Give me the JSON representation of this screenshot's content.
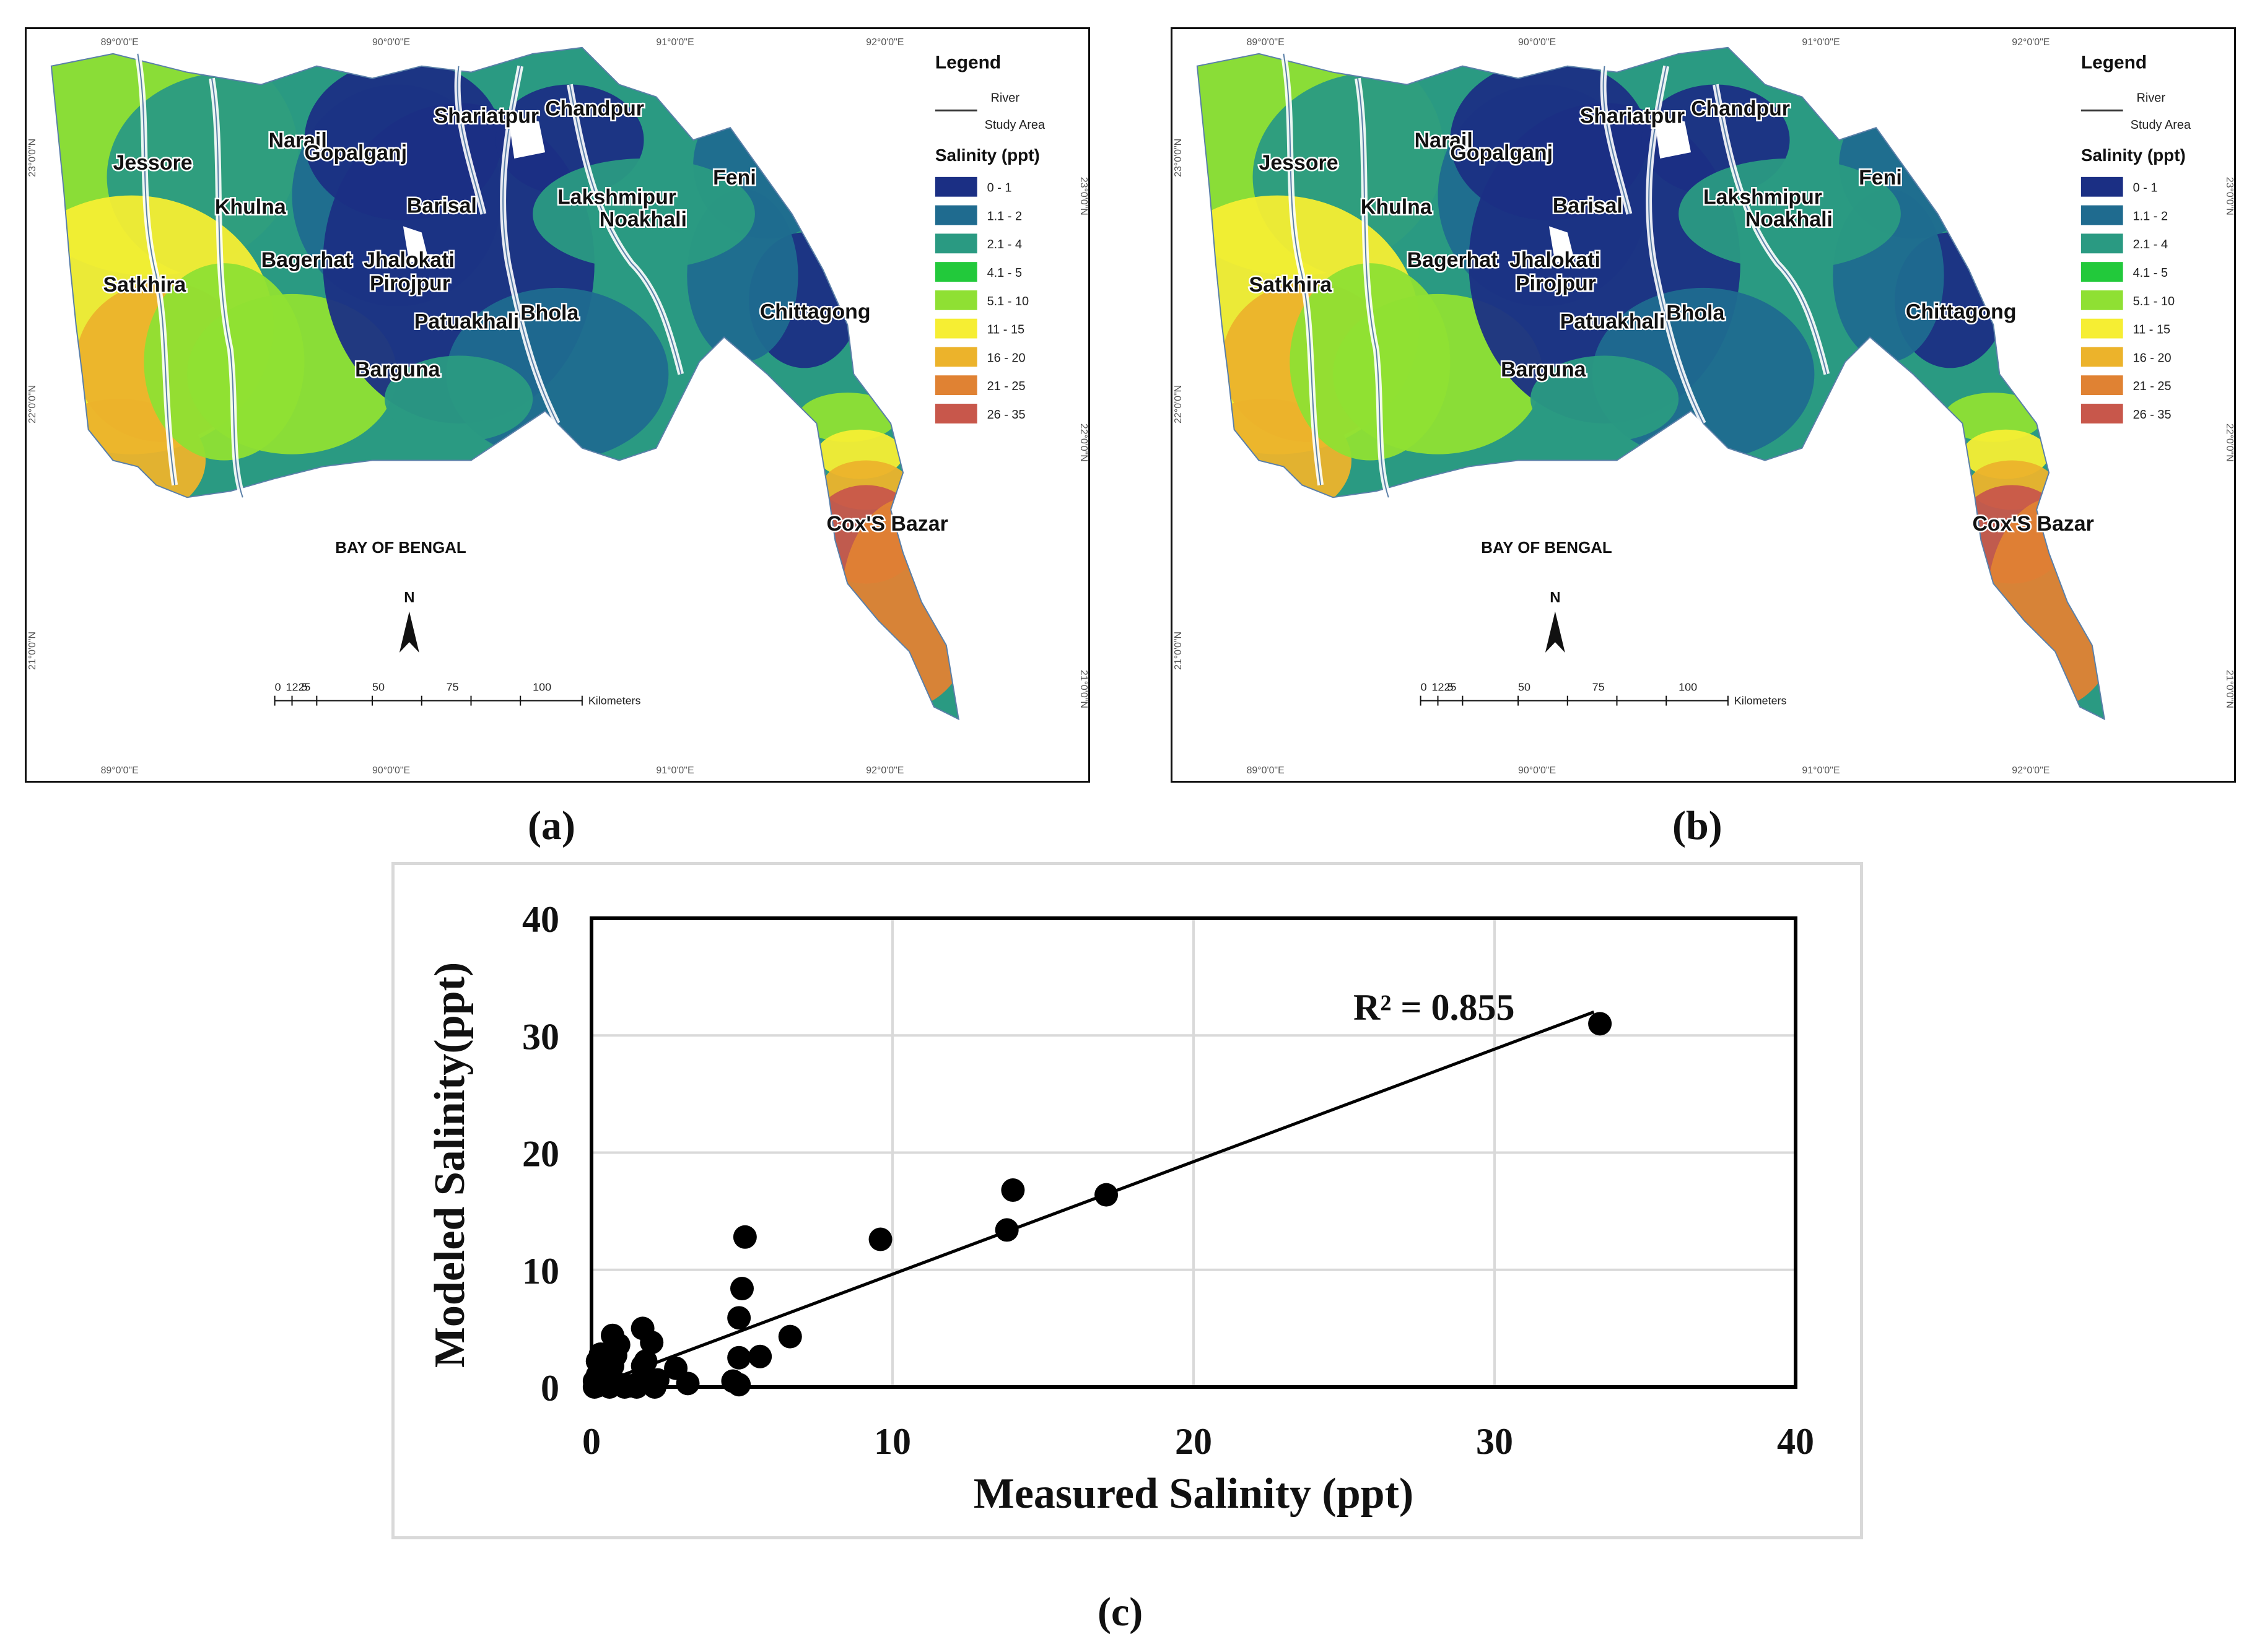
{
  "panels": [
    {
      "id": "a",
      "caption": "(a)",
      "legend": {
        "title": "Legend",
        "river_label": "River",
        "study_area_label": "Study Area",
        "salinity_title": "Salinity (ppt)",
        "classes": [
          {
            "label": "0 - 1",
            "color": "#1b2f84"
          },
          {
            "label": "1.1 - 2",
            "color": "#1f6b8f"
          },
          {
            "label": "2.1 - 4",
            "color": "#2a9a82"
          },
          {
            "label": "4.1 - 5",
            "color": "#22c93b"
          },
          {
            "label": "5.1 - 10",
            "color": "#8fe033"
          },
          {
            "label": "11 - 15",
            "color": "#f6ee33"
          },
          {
            "label": "16 - 20",
            "color": "#ecb32b"
          },
          {
            "label": "21 - 25",
            "color": "#e08233"
          },
          {
            "label": "26 - 35",
            "color": "#c8574b"
          }
        ]
      },
      "places": [
        "Shariatpur",
        "Chandpur",
        "Narail",
        "Gopalganj",
        "Jessore",
        "Khulna",
        "Barisal",
        "Lakshmipur",
        "Noakhali",
        "Feni",
        "Satkhira",
        "Bagerhat",
        "Jhalokati",
        "Pirojpur",
        "Patuakhali",
        "Bhola",
        "Chittagong",
        "Barguna",
        "Cox'S Bazar"
      ],
      "sea_label": "BAY OF BENGAL",
      "north": "N",
      "scale_numbers": [
        "0",
        "12.5",
        "25",
        "50",
        "75",
        "100"
      ],
      "scale_unit": "Kilometers",
      "coords_top": [
        "89°0'0\"E",
        "90°0'0\"E",
        "91°0'0\"E",
        "92°0'0\"E"
      ],
      "coords_side": [
        "23°0'0\"N",
        "22°0'0\"N",
        "21°0'0\"N"
      ]
    },
    {
      "id": "b",
      "caption": "(b)",
      "legend": {
        "title": "Legend",
        "river_label": "River",
        "study_area_label": "Study Area",
        "salinity_title": "Salinity (ppt)",
        "classes": [
          {
            "label": "0 - 1",
            "color": "#1b2f84"
          },
          {
            "label": "1.1 - 2",
            "color": "#1f6b8f"
          },
          {
            "label": "2.1 - 4",
            "color": "#2a9a82"
          },
          {
            "label": "4.1 - 5",
            "color": "#22c93b"
          },
          {
            "label": "5.1 - 10",
            "color": "#8fe033"
          },
          {
            "label": "11 - 15",
            "color": "#f6ee33"
          },
          {
            "label": "16 - 20",
            "color": "#ecb32b"
          },
          {
            "label": "21 - 25",
            "color": "#e08233"
          },
          {
            "label": "26 - 35",
            "color": "#c8574b"
          }
        ]
      },
      "places": [
        "Shariatpur",
        "Chandpur",
        "Narail",
        "Gopalganj",
        "Jessore",
        "Khulna",
        "Barisal",
        "Lakshmipur",
        "Noakhali",
        "Feni",
        "Satkhira",
        "Bagerhat",
        "Jhalokati",
        "Pirojpur",
        "Patuakhali",
        "Bhola",
        "Chittagong",
        "Barguna",
        "Cox'S Bazar"
      ],
      "sea_label": "BAY OF BENGAL",
      "north": "N",
      "scale_numbers": [
        "0",
        "12.5",
        "25",
        "50",
        "75",
        "100"
      ],
      "scale_unit": "Kilometers",
      "coords_top": [
        "89°0'0\"E",
        "90°0'0\"E",
        "91°0'0\"E",
        "92°0'0\"E"
      ],
      "coords_side": [
        "23°0'0\"N",
        "22°0'0\"N",
        "21°0'0\"N"
      ]
    }
  ],
  "chart_data": {
    "type": "scatter",
    "caption": "(c)",
    "xlabel": "Measured Salinity (ppt)",
    "ylabel": "Modeled  Salinity(ppt)",
    "xlim": [
      0,
      40
    ],
    "ylim": [
      0,
      40
    ],
    "xticks": [
      0,
      10,
      20,
      30,
      40
    ],
    "yticks": [
      0,
      10,
      20,
      30,
      40
    ],
    "grid": true,
    "annotation": "R² = 0.855",
    "trendline": {
      "x": [
        0.5,
        33.3
      ],
      "y": [
        0.5,
        32.0
      ]
    },
    "points": [
      [
        0.1,
        0.0
      ],
      [
        0.2,
        0.1
      ],
      [
        0.3,
        0.2
      ],
      [
        0.1,
        0.5
      ],
      [
        0.2,
        1.0
      ],
      [
        0.3,
        1.5
      ],
      [
        0.2,
        2.2
      ],
      [
        0.3,
        2.8
      ],
      [
        0.5,
        0.3
      ],
      [
        0.6,
        0.0
      ],
      [
        0.7,
        1.8
      ],
      [
        0.8,
        2.7
      ],
      [
        0.7,
        4.4
      ],
      [
        0.9,
        3.6
      ],
      [
        1.0,
        0.2
      ],
      [
        1.1,
        0.0
      ],
      [
        1.3,
        0.1
      ],
      [
        1.5,
        0.0
      ],
      [
        1.6,
        0.4
      ],
      [
        1.7,
        1.8
      ],
      [
        1.8,
        2.2
      ],
      [
        1.7,
        5.0
      ],
      [
        2.0,
        3.8
      ],
      [
        2.2,
        0.6
      ],
      [
        2.1,
        0.0
      ],
      [
        2.8,
        1.6
      ],
      [
        3.2,
        0.3
      ],
      [
        4.7,
        0.5
      ],
      [
        4.9,
        0.2
      ],
      [
        4.9,
        2.5
      ],
      [
        4.9,
        5.9
      ],
      [
        5.0,
        8.4
      ],
      [
        5.1,
        12.8
      ],
      [
        5.6,
        2.6
      ],
      [
        6.6,
        4.3
      ],
      [
        9.6,
        12.6
      ],
      [
        13.8,
        13.4
      ],
      [
        14.0,
        16.8
      ],
      [
        17.1,
        16.4
      ],
      [
        33.5,
        31.0
      ]
    ]
  }
}
